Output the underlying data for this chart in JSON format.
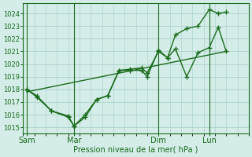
{
  "title": "",
  "xlabel": "Pression niveau de la mer( hPa )",
  "ylabel": "",
  "bg_color": "#d4ede9",
  "grid_color": "#aed4ce",
  "line_color": "#1a6b1a",
  "ylim": [
    1014.5,
    1024.8
  ],
  "yticks": [
    1015,
    1016,
    1017,
    1018,
    1019,
    1020,
    1021,
    1022,
    1023,
    1024
  ],
  "xlim": [
    0,
    20
  ],
  "day_labels": [
    "Sam",
    "Mar",
    "Dim",
    "Lun"
  ],
  "day_positions": [
    0.3,
    4.5,
    12.0,
    16.5
  ],
  "series1_x": [
    0.3,
    1.2,
    2.5,
    4.0,
    4.5,
    5.5,
    6.5,
    7.5,
    8.5,
    9.5,
    10.5,
    11.0,
    12.0,
    12.8,
    13.5,
    14.5,
    15.5,
    16.5,
    17.3,
    18.0
  ],
  "series1_y": [
    1018.0,
    1017.5,
    1016.3,
    1015.8,
    1015.1,
    1015.8,
    1017.2,
    1017.5,
    1019.5,
    1019.5,
    1019.5,
    1019.0,
    1021.1,
    1020.5,
    1021.2,
    1019.0,
    1020.9,
    1021.3,
    1022.9,
    1021.0
  ],
  "series2_x": [
    0.3,
    1.2,
    2.5,
    4.0,
    4.5,
    5.5,
    6.5,
    7.5,
    8.5,
    9.5,
    10.5,
    11.0,
    12.0,
    12.8,
    13.5,
    14.5,
    15.5,
    16.5,
    17.3,
    18.0
  ],
  "series2_y": [
    1018.0,
    1017.4,
    1016.3,
    1015.9,
    1015.1,
    1016.0,
    1017.2,
    1017.5,
    1019.5,
    1019.6,
    1019.7,
    1019.3,
    1021.0,
    1020.5,
    1022.3,
    1022.8,
    1023.0,
    1024.3,
    1024.0,
    1024.1
  ],
  "series3_x": [
    0.3,
    18.0
  ],
  "series3_y": [
    1017.8,
    1021.0
  ],
  "vline_positions": [
    0.3,
    4.5,
    12.0,
    16.5
  ]
}
